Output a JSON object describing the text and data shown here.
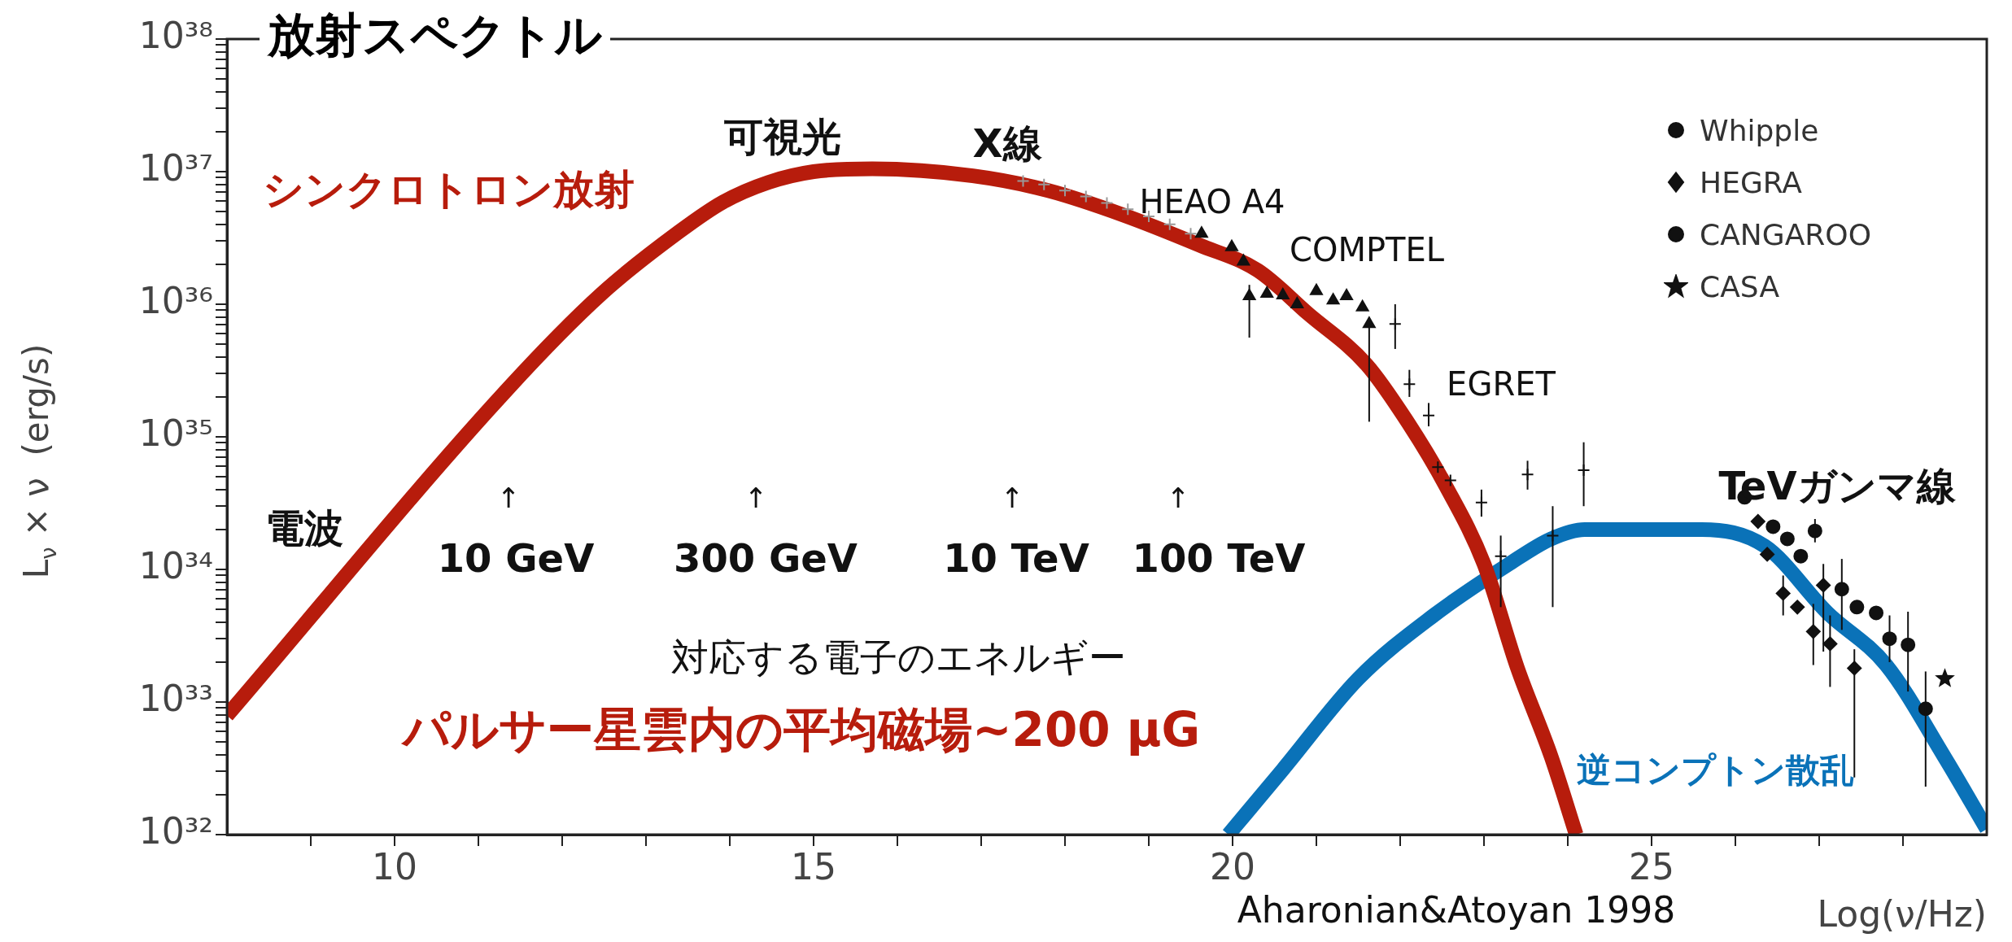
{
  "chart_data": {
    "type": "scatter",
    "title": "放射スペクトル",
    "xlabel": "Log(ν/Hz)",
    "ylabel": "L$_{ν}$ × ν  (erg/s)",
    "xlim": [
      8,
      29
    ],
    "ylim": [
      1e+32,
      1e+38
    ],
    "log": "y",
    "grid": false,
    "legend": "top right",
    "xticks": [
      {
        "value": 9,
        "label": null
      },
      10,
      {
        "value": 11,
        "label": null
      },
      {
        "value": 12,
        "label": null
      },
      {
        "value": 13,
        "label": null
      },
      {
        "value": 14,
        "label": null
      },
      15,
      {
        "value": 16,
        "label": null
      },
      {
        "value": 17,
        "label": null
      },
      {
        "value": 18,
        "label": null
      },
      {
        "value": 19,
        "label": null
      },
      20,
      {
        "value": 21,
        "label": null
      },
      {
        "value": 22,
        "label": null
      },
      {
        "value": 23,
        "label": null
      },
      {
        "value": 24,
        "label": null
      },
      25,
      {
        "value": 26,
        "label": null
      },
      {
        "value": 27,
        "label": null
      },
      {
        "value": 28,
        "label": null
      }
    ],
    "yticks": [
      {
        "value": 1e+32,
        "label": "10³²"
      },
      {
        "value": 2e+32,
        "label": null
      },
      {
        "value": 3e+32,
        "label": null
      },
      {
        "value": 4e+32,
        "label": null
      },
      {
        "value": 5e+32,
        "label": null
      },
      {
        "value": 6e+32,
        "label": null
      },
      {
        "value": 7e+32,
        "label": null
      },
      {
        "value": 8e+32,
        "label": null
      },
      {
        "value": 9e+32,
        "label": null
      },
      {
        "value": 1e+33,
        "label": "10³³"
      },
      {
        "value": 2e+33,
        "label": null
      },
      {
        "value": 3e+33,
        "label": null
      },
      {
        "value": 4e+33,
        "label": null
      },
      {
        "value": 5e+33,
        "label": null
      },
      {
        "value": 6e+33,
        "label": null
      },
      {
        "value": 7e+33,
        "label": null
      },
      {
        "value": 8e+33,
        "label": null
      },
      {
        "value": 9e+33,
        "label": null
      },
      {
        "value": 1e+34,
        "label": "10³⁴"
      },
      {
        "value": 2e+34,
        "label": null
      },
      {
        "value": 3e+34,
        "label": null
      },
      {
        "value": 4e+34,
        "label": null
      },
      {
        "value": 5e+34,
        "label": null
      },
      {
        "value": 6e+34,
        "label": null
      },
      {
        "value": 7e+34,
        "label": null
      },
      {
        "value": 8e+34,
        "label": null
      },
      {
        "value": 9e+34,
        "label": null
      },
      {
        "value": 1e+35,
        "label": "10³⁵"
      },
      {
        "value": 2e+35,
        "label": null
      },
      {
        "value": 3e+35,
        "label": null
      },
      {
        "value": 4e+35,
        "label": null
      },
      {
        "value": 5e+35,
        "label": null
      },
      {
        "value": 6e+35,
        "label": null
      },
      {
        "value": 7e+35,
        "label": null
      },
      {
        "value": 8e+35,
        "label": null
      },
      {
        "value": 9e+35,
        "label": null
      },
      {
        "value": 1e+36,
        "label": "10³⁶"
      },
      {
        "value": 2e+36,
        "label": null
      },
      {
        "value": 3e+36,
        "label": null
      },
      {
        "value": 4e+36,
        "label": null
      },
      {
        "value": 5e+36,
        "label": null
      },
      {
        "value": 6e+36,
        "label": null
      },
      {
        "value": 7e+36,
        "label": null
      },
      {
        "value": 8e+36,
        "label": null
      },
      {
        "value": 9e+36,
        "label": null
      },
      {
        "value": 1e+37,
        "label": "10³⁷"
      },
      {
        "value": 2e+37,
        "label": null
      },
      {
        "value": 3e+37,
        "label": null
      },
      {
        "value": 4e+37,
        "label": null
      },
      {
        "value": 5e+37,
        "label": null
      },
      {
        "value": 6e+37,
        "label": null
      },
      {
        "value": 7e+37,
        "label": null
      },
      {
        "value": 8e+37,
        "label": null
      },
      {
        "value": 9e+37,
        "label": null
      },
      {
        "value": 1e+38,
        "label": "10³⁸"
      }
    ],
    "series": [
      {
        "name": "シンクロトロン放射",
        "type": "line",
        "color": "#b71c0c",
        "marker": "none",
        "x": [
          8,
          11.35,
          12.47,
          13.39,
          13.92,
          14.46,
          15.0,
          15.7,
          16.9,
          17.8,
          18.7,
          19.6,
          20.3,
          20.9,
          21.6,
          22.1,
          22.55,
          23.0,
          23.4,
          23.8,
          24.1
        ],
        "values": [
          7.9e+32,
          2.3e+35,
          1.2e+36,
          3.5e+36,
          5.9e+36,
          8.3e+36,
          1e+37,
          1.05e+37,
          9.3e+36,
          7.2e+36,
          4.7e+36,
          2.8e+36,
          1.8e+36,
          8.5e+35,
          3.5e+35,
          1.26e+35,
          4.2e+34,
          1.1e+34,
          1.8e+33,
          3.9e+32,
          1e+32
        ]
      },
      {
        "name": "逆コンプトン散乱",
        "type": "line",
        "color": "#0a72b8",
        "marker": "none",
        "x": [
          19.95,
          20.6,
          21.5,
          22.4,
          23.3,
          23.8,
          24.2,
          25.0,
          25.6,
          26.35,
          27.1,
          27.8,
          28.5,
          29.0
        ],
        "values": [
          1e+32,
          3.1e+32,
          1.5e+33,
          4.5e+33,
          1.1e+34,
          1.7e+34,
          2e+34,
          2e+34,
          2e+34,
          1.5e+34,
          4.7e+33,
          1.9e+33,
          3.8e+32,
          1.1e+32
        ]
      },
      {
        "type": "scatter",
        "color": "#999999",
        "marker": "cross",
        "x": [
          17.5,
          17.75,
          18,
          18.25,
          18.5,
          18.75,
          19,
          19.25,
          19.5
        ],
        "values": [
          8.5e+36,
          8e+36,
          7.2e+36,
          6.5e+36,
          5.8e+36,
          5.2e+36,
          4.6e+36,
          4e+36,
          3.4e+36
        ]
      },
      {
        "type": "scatter",
        "color": "#111111",
        "marker": "triangle",
        "x": [
          19.63,
          19.99,
          20.13,
          20.2
        ],
        "values": [
          3.4e+36,
          2.7e+36,
          2.1e+36,
          1.15e+36
        ],
        "errors": [
          null,
          null,
          null,
          [
            5.6e+35,
            1.4e+36
          ]
        ]
      },
      {
        "type": "scatter",
        "color": "#111111",
        "marker": "triangle",
        "x": [
          20.41,
          20.6,
          20.77,
          21.0,
          21.2,
          21.36,
          21.55,
          21.63
        ],
        "values": [
          1.2e+36,
          1.17e+36,
          1e+36,
          1.26e+36,
          1.07e+36,
          1.15e+36,
          9.5e+35,
          7.1e+35
        ],
        "errors": [
          null,
          null,
          null,
          null,
          null,
          null,
          null,
          [
            1.3e+35,
            8e+35
          ]
        ]
      },
      {
        "type": "scatter",
        "color": "#111111",
        "marker": "cross",
        "x": [
          21.94,
          22.11,
          22.34,
          22.45,
          22.6,
          22.97,
          23.2,
          23.52,
          23.82,
          24.19
        ],
        "values": [
          7.1e+35,
          2.5e+35,
          1.45e+35,
          5.9e+34,
          4.7e+34,
          3.2e+34,
          1.26e+34,
          5.2e+34,
          1.8e+34,
          5.6e+34
        ],
        "errors": [
          [
            4.6e+35,
            1e+36
          ],
          [
            2e+35,
            3.2e+35
          ],
          [
            1.2e+35,
            1.8e+35
          ],
          null,
          null,
          [
            2.5e+34,
            4e+34
          ],
          [
            5.2e+33,
            1.8e+34
          ],
          [
            4e+34,
            6.6e+34
          ],
          [
            5.2e+33,
            3e+34
          ],
          [
            3e+34,
            9.1e+34
          ]
        ]
      },
      {
        "name": "Whipple",
        "type": "scatter",
        "color": "#111111",
        "marker": "circle",
        "x": [
          26.11,
          26.45,
          26.62,
          26.78,
          26.95
        ],
        "values": [
          3.5e+34,
          2.1e+34,
          1.7e+34,
          1.26e+34,
          1.95e+34
        ],
        "errors": [
          null,
          null,
          null,
          null,
          [
            1.6e+34,
            2.4e+34
          ]
        ]
      },
      {
        "name": "HEGRA",
        "type": "scatter",
        "color": "#111111",
        "marker": "diamond",
        "x": [
          26.27,
          26.38,
          26.57,
          26.74,
          26.93,
          27.05,
          27.13,
          27.42
        ],
        "values": [
          2.3e+34,
          1.3e+34,
          6.6e+33,
          5.2e+33,
          3.4e+33,
          7.6e+33,
          2.75e+33,
          1.8e+33
        ],
        "errors": [
          null,
          null,
          [
            4.5e+33,
            9e+33
          ],
          null,
          [
            1.9e+33,
            5.5e+33
          ],
          [
            2.4e+33,
            1.1e+34
          ],
          [
            1.3e+33,
            4.5e+33
          ],
          [
            2.7e+32,
            2.5e+33
          ]
        ]
      },
      {
        "name": "CANGAROO",
        "type": "scatter",
        "color": "#111111",
        "marker": "circle",
        "x": [
          27.27,
          27.45,
          27.68,
          27.84,
          28.06,
          28.27
        ],
        "values": [
          7.1e+33,
          5.2e+33,
          4.7e+33,
          3e+33,
          2.7e+33,
          8.9e+32
        ],
        "errors": [
          [
            3.5e+33,
            1.2e+34
          ],
          null,
          null,
          [
            2e+33,
            4.5e+33
          ],
          [
            1.2e+33,
            4.8e+33
          ],
          [
            2.3e+32,
            1.7e+33
          ]
        ]
      },
      {
        "name": "CASA",
        "type": "scatter",
        "color": "#111111",
        "marker": "star",
        "x": [
          28.5
        ],
        "values": [
          1.5e+33
        ]
      }
    ],
    "annotations": [
      "可視光",
      "X線",
      "電波",
      "TeVガンマ線",
      "HEAO A4",
      "COMPTEL",
      "EGRET",
      "↑",
      "↑",
      "↑",
      "↑",
      "10 GeV",
      "300 GeV",
      "10 TeV",
      "100 TeV",
      "対応する電子のエネルギー",
      "パルサー星雲内の平均磁場~200 μG",
      "Aharonian&Atoyan 1998"
    ]
  }
}
